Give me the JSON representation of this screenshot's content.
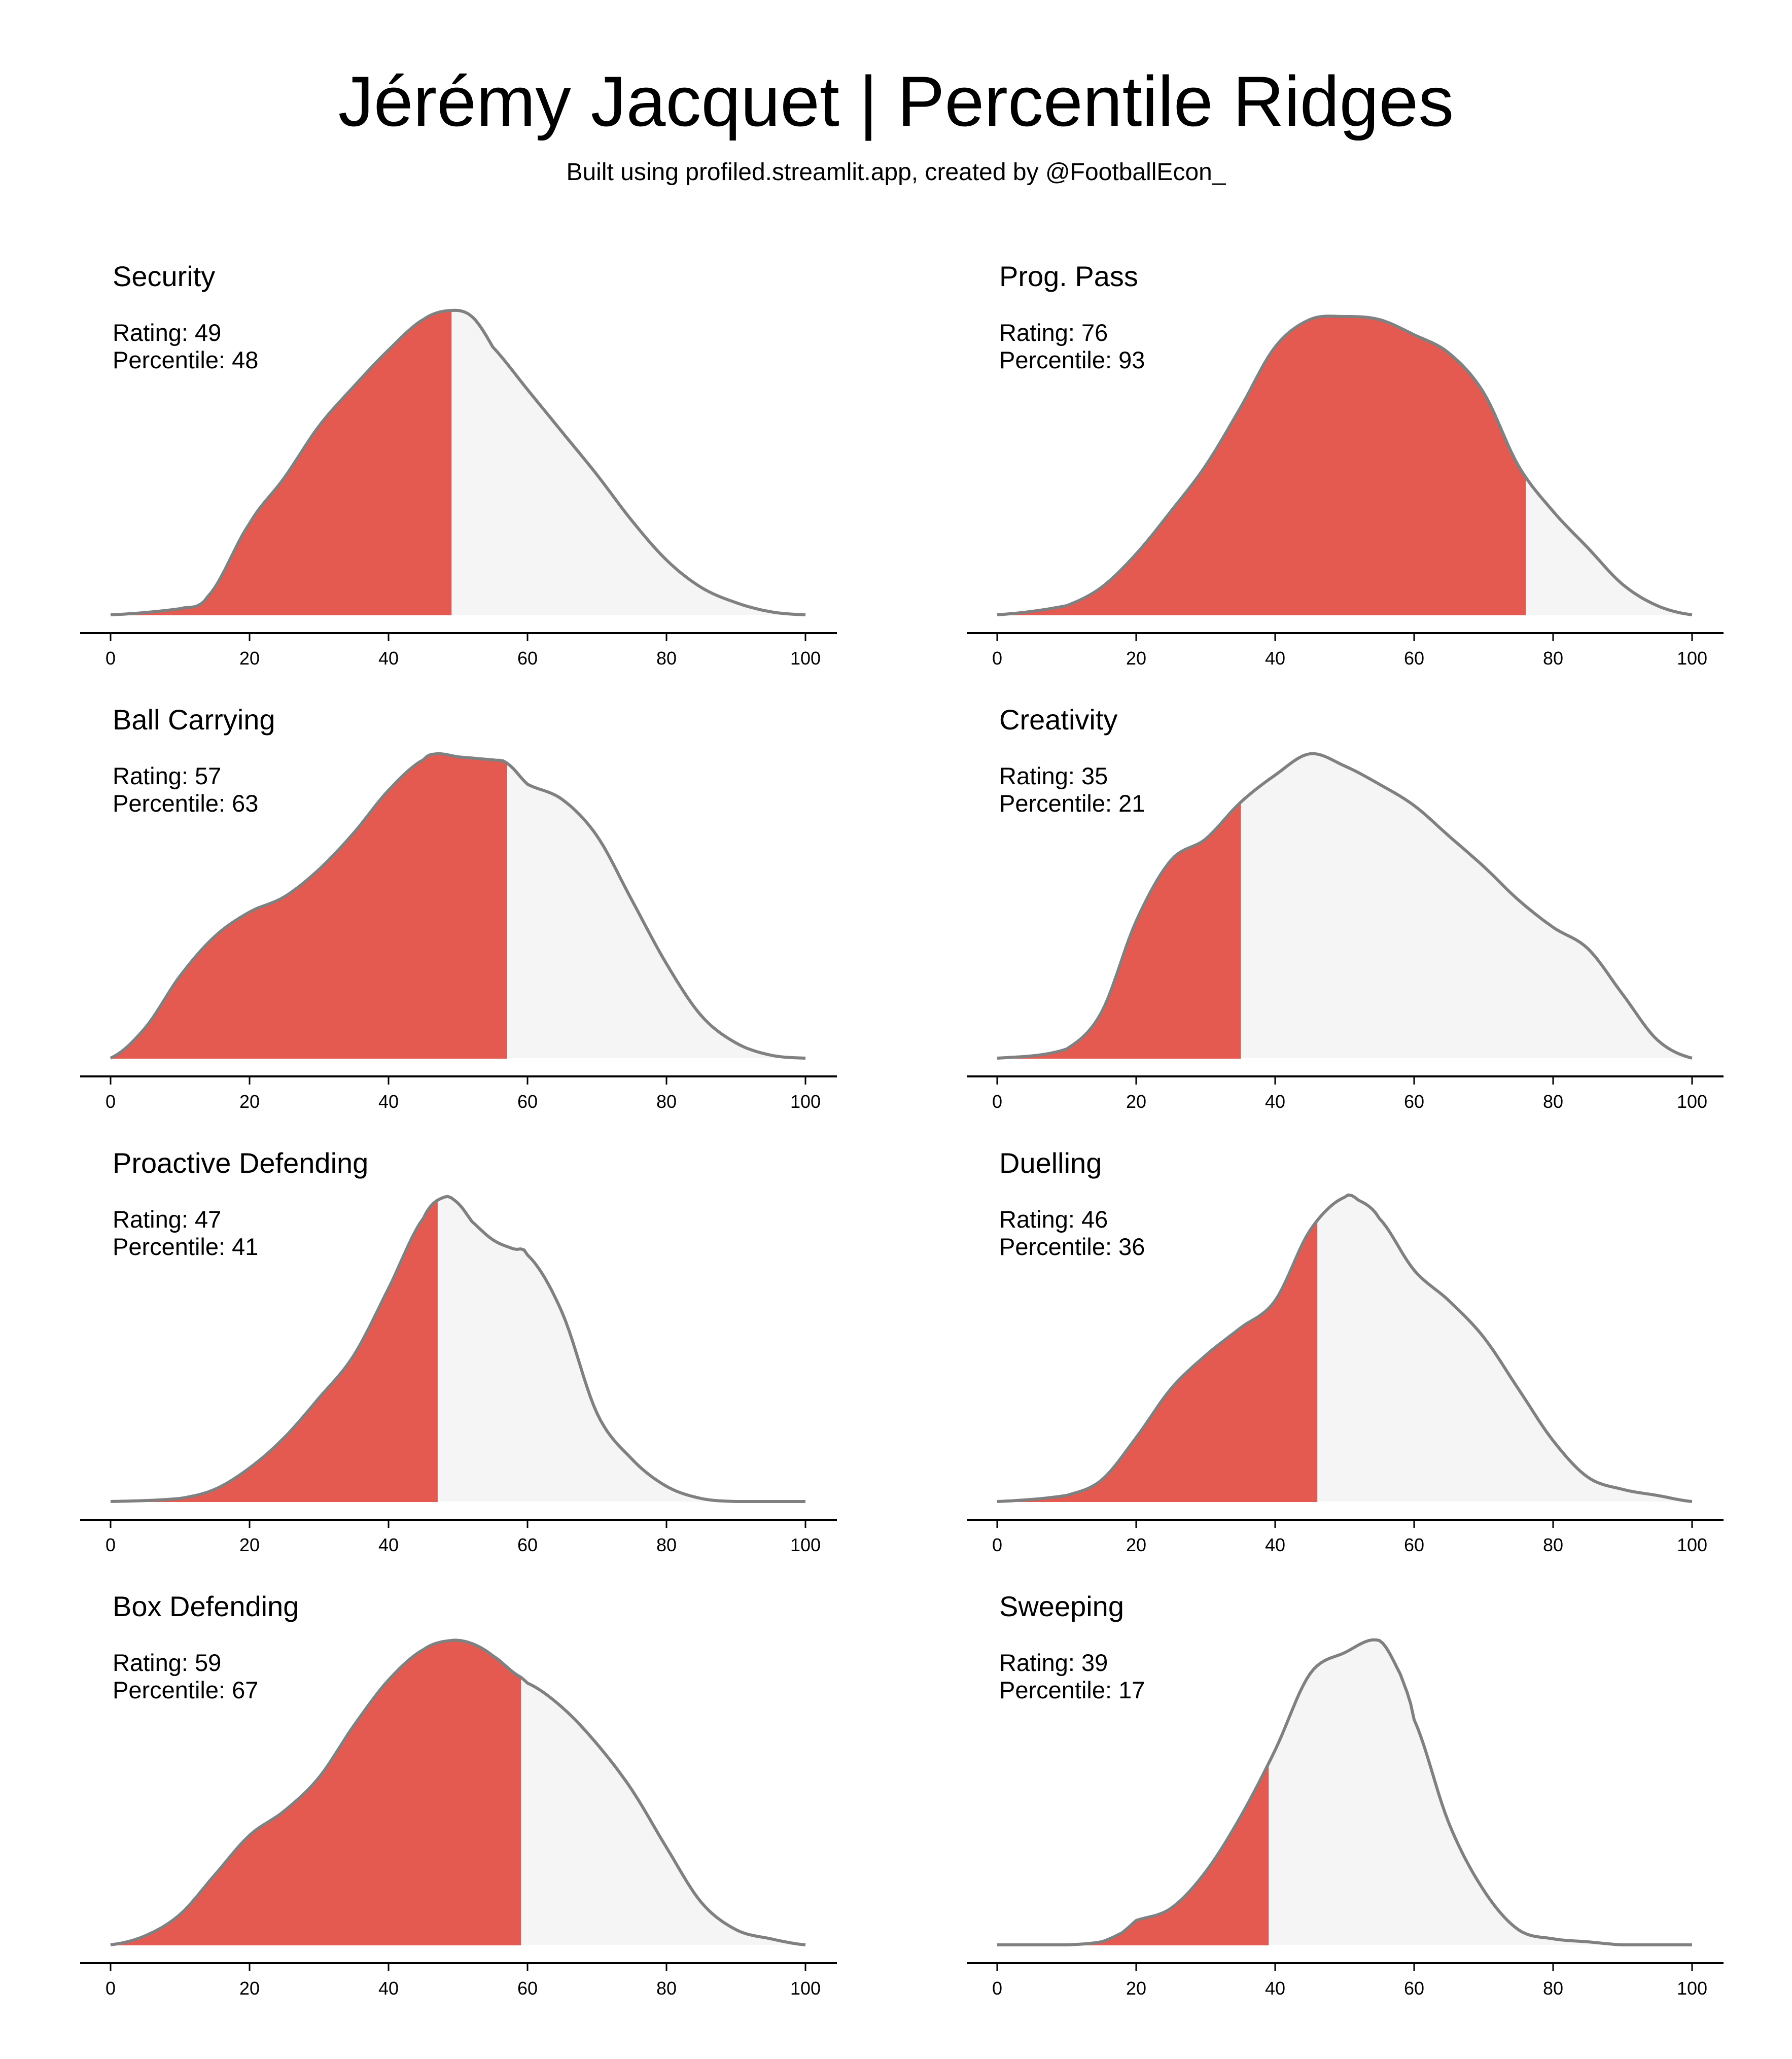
{
  "title": "Jérémy Jacquet | Percentile Ridges",
  "subtitle": "Built using profiled.streamlit.app, created by @FootballEcon_",
  "colors": {
    "fill_below": "#e55a50",
    "fill_above": "#f5f5f5",
    "curve": "#808080",
    "axis": "#000000"
  },
  "labels": {
    "rating_prefix": "Rating: ",
    "percentile_prefix": "Percentile: "
  },
  "chart_data": [
    {
      "type": "area",
      "title": "Security",
      "rating": 49,
      "percentile": 48,
      "xlim": [
        0,
        100
      ],
      "xticks": [
        0,
        20,
        40,
        60,
        80,
        100
      ],
      "x": [
        0,
        10,
        14,
        20,
        25,
        30,
        35,
        40,
        45,
        49,
        52,
        55,
        60,
        65,
        70,
        75,
        80,
        85,
        90,
        95,
        100
      ],
      "y": [
        0.0,
        0.02,
        0.06,
        0.3,
        0.45,
        0.62,
        0.75,
        0.87,
        0.97,
        1.0,
        0.98,
        0.88,
        0.74,
        0.6,
        0.46,
        0.31,
        0.18,
        0.09,
        0.04,
        0.01,
        0.0
      ]
    },
    {
      "type": "area",
      "title": "Prog. Pass",
      "rating": 76,
      "percentile": 93,
      "xlim": [
        0,
        100
      ],
      "xticks": [
        0,
        20,
        40,
        60,
        80,
        100
      ],
      "x": [
        0,
        10,
        15,
        20,
        25,
        30,
        35,
        40,
        45,
        50,
        55,
        60,
        65,
        70,
        75,
        80,
        85,
        90,
        95,
        100
      ],
      "y": [
        0.0,
        0.03,
        0.09,
        0.2,
        0.34,
        0.49,
        0.68,
        0.88,
        0.97,
        0.98,
        0.97,
        0.92,
        0.86,
        0.73,
        0.49,
        0.34,
        0.22,
        0.1,
        0.03,
        0.0
      ]
    },
    {
      "type": "area",
      "title": "Ball Carrying",
      "rating": 57,
      "percentile": 63,
      "xlim": [
        0,
        100
      ],
      "xticks": [
        0,
        20,
        40,
        60,
        80,
        100
      ],
      "x": [
        0,
        5,
        10,
        15,
        20,
        25,
        30,
        35,
        40,
        45,
        47,
        50,
        55,
        57,
        60,
        65,
        70,
        75,
        80,
        85,
        90,
        95,
        100
      ],
      "y": [
        0.0,
        0.1,
        0.27,
        0.4,
        0.48,
        0.53,
        0.62,
        0.74,
        0.88,
        0.98,
        1.0,
        0.99,
        0.98,
        0.97,
        0.9,
        0.85,
        0.73,
        0.52,
        0.31,
        0.14,
        0.05,
        0.01,
        0.0
      ]
    },
    {
      "type": "area",
      "title": "Creativity",
      "rating": 35,
      "percentile": 21,
      "xlim": [
        0,
        100
      ],
      "xticks": [
        0,
        20,
        40,
        60,
        80,
        100
      ],
      "x": [
        0,
        10,
        15,
        20,
        25,
        30,
        35,
        40,
        45,
        50,
        55,
        60,
        65,
        70,
        75,
        80,
        85,
        90,
        95,
        100
      ],
      "y": [
        0.0,
        0.03,
        0.15,
        0.45,
        0.65,
        0.72,
        0.84,
        0.93,
        1.0,
        0.96,
        0.9,
        0.83,
        0.73,
        0.63,
        0.52,
        0.43,
        0.36,
        0.21,
        0.06,
        0.0
      ]
    },
    {
      "type": "area",
      "title": "Proactive Defending",
      "rating": 47,
      "percentile": 41,
      "xlim": [
        0,
        100
      ],
      "xticks": [
        0,
        20,
        40,
        60,
        80,
        100
      ],
      "x": [
        0,
        10,
        15,
        20,
        25,
        30,
        35,
        40,
        45,
        48,
        50,
        52,
        55,
        58,
        60,
        65,
        70,
        75,
        80,
        85,
        90,
        95,
        100
      ],
      "y": [
        0.0,
        0.01,
        0.04,
        0.11,
        0.21,
        0.34,
        0.48,
        0.7,
        0.93,
        1.0,
        0.98,
        0.92,
        0.86,
        0.83,
        0.81,
        0.62,
        0.29,
        0.14,
        0.05,
        0.01,
        0.0,
        0.0,
        0.0
      ]
    },
    {
      "type": "area",
      "title": "Duelling",
      "rating": 46,
      "percentile": 36,
      "xlim": [
        0,
        100
      ],
      "xticks": [
        0,
        20,
        40,
        60,
        80,
        100
      ],
      "x": [
        0,
        10,
        15,
        20,
        25,
        30,
        35,
        40,
        45,
        50,
        52,
        55,
        60,
        65,
        70,
        75,
        80,
        85,
        90,
        95,
        100
      ],
      "y": [
        0.0,
        0.02,
        0.07,
        0.21,
        0.37,
        0.48,
        0.57,
        0.66,
        0.89,
        1.0,
        0.99,
        0.93,
        0.76,
        0.66,
        0.54,
        0.37,
        0.2,
        0.08,
        0.04,
        0.02,
        0.0
      ]
    },
    {
      "type": "area",
      "title": "Box Defending",
      "rating": 59,
      "percentile": 67,
      "xlim": [
        0,
        100
      ],
      "xticks": [
        0,
        20,
        40,
        60,
        80,
        100
      ],
      "x": [
        0,
        5,
        10,
        15,
        20,
        25,
        30,
        35,
        40,
        45,
        49,
        52,
        55,
        59,
        60,
        65,
        70,
        75,
        80,
        85,
        90,
        95,
        100
      ],
      "y": [
        0.0,
        0.03,
        0.1,
        0.23,
        0.36,
        0.44,
        0.55,
        0.72,
        0.87,
        0.97,
        1.0,
        0.99,
        0.95,
        0.88,
        0.86,
        0.78,
        0.66,
        0.51,
        0.32,
        0.14,
        0.05,
        0.02,
        0.0
      ]
    },
    {
      "type": "area",
      "title": "Sweeping",
      "rating": 39,
      "percentile": 17,
      "xlim": [
        0,
        100
      ],
      "xticks": [
        0,
        20,
        40,
        60,
        80,
        100
      ],
      "x": [
        0,
        10,
        15,
        18,
        20,
        25,
        30,
        35,
        40,
        45,
        50,
        55,
        58,
        60,
        65,
        70,
        75,
        80,
        85,
        90,
        95,
        100
      ],
      "y": [
        0.0,
        0.0,
        0.01,
        0.04,
        0.08,
        0.12,
        0.24,
        0.42,
        0.64,
        0.89,
        0.96,
        1.0,
        0.89,
        0.74,
        0.4,
        0.18,
        0.05,
        0.02,
        0.01,
        0.0,
        0.0,
        0.0
      ]
    }
  ]
}
